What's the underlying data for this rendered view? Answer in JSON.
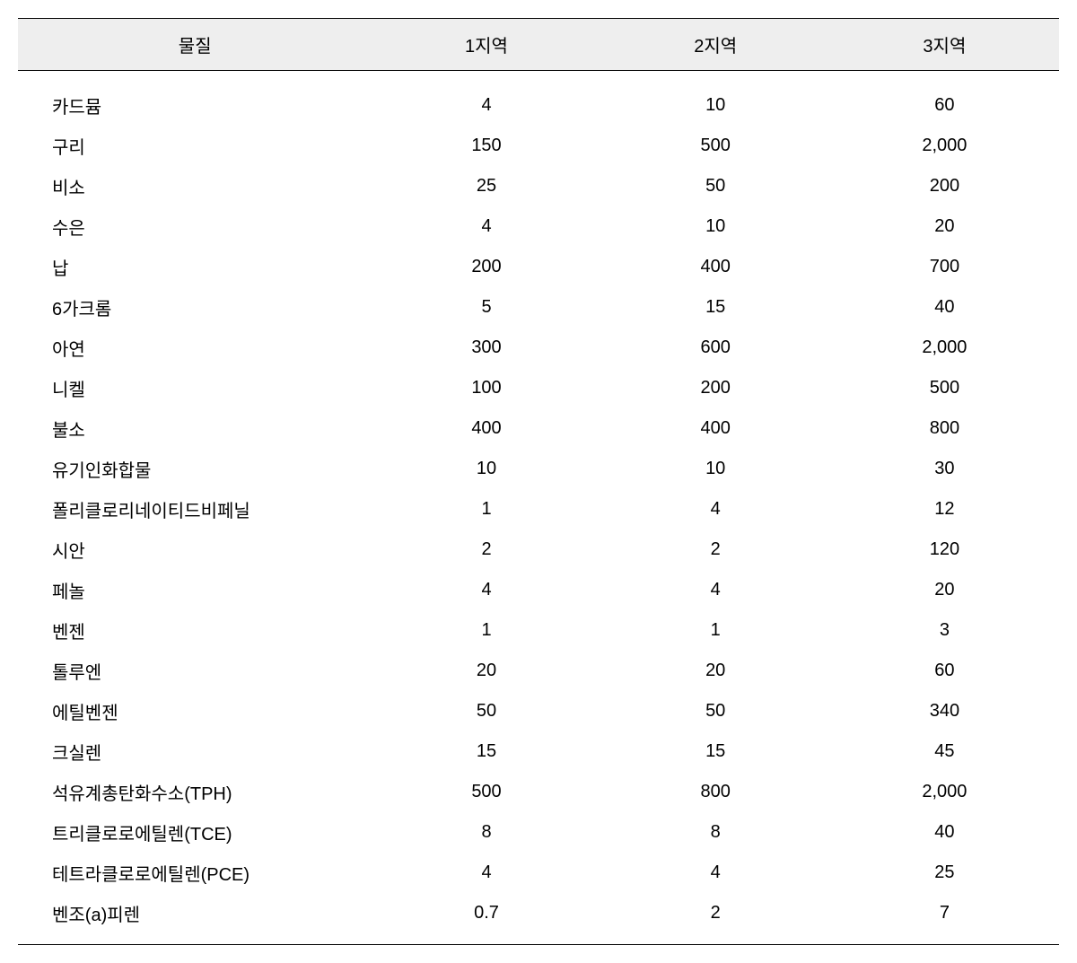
{
  "table": {
    "columns": [
      "물질",
      "1지역",
      "2지역",
      "3지역"
    ],
    "column_widths": [
      "34%",
      "22%",
      "22%",
      "22%"
    ],
    "header_bg": "#eeeeee",
    "border_color": "#000000",
    "text_color": "#000000",
    "font_size": 20,
    "rows": [
      [
        "카드뮴",
        "4",
        "10",
        "60"
      ],
      [
        "구리",
        "150",
        "500",
        "2,000"
      ],
      [
        "비소",
        "25",
        "50",
        "200"
      ],
      [
        "수은",
        "4",
        "10",
        "20"
      ],
      [
        "납",
        "200",
        "400",
        "700"
      ],
      [
        "6가크롬",
        "5",
        "15",
        "40"
      ],
      [
        "아연",
        "300",
        "600",
        "2,000"
      ],
      [
        "니켈",
        "100",
        "200",
        "500"
      ],
      [
        "불소",
        "400",
        "400",
        "800"
      ],
      [
        "유기인화합물",
        "10",
        "10",
        "30"
      ],
      [
        "폴리클로리네이티드비페닐",
        "1",
        "4",
        "12"
      ],
      [
        "시안",
        "2",
        "2",
        "120"
      ],
      [
        "페놀",
        "4",
        "4",
        "20"
      ],
      [
        "벤젠",
        "1",
        "1",
        "3"
      ],
      [
        "톨루엔",
        "20",
        "20",
        "60"
      ],
      [
        "에틸벤젠",
        "50",
        "50",
        "340"
      ],
      [
        "크실렌",
        "15",
        "15",
        "45"
      ],
      [
        "석유계총탄화수소(TPH)",
        "500",
        "800",
        "2,000"
      ],
      [
        "트리클로로에틸렌(TCE)",
        "8",
        "8",
        "40"
      ],
      [
        "테트라클로로에틸렌(PCE)",
        "4",
        "4",
        "25"
      ],
      [
        "벤조(a)피렌",
        "0.7",
        "2",
        "7"
      ]
    ]
  }
}
